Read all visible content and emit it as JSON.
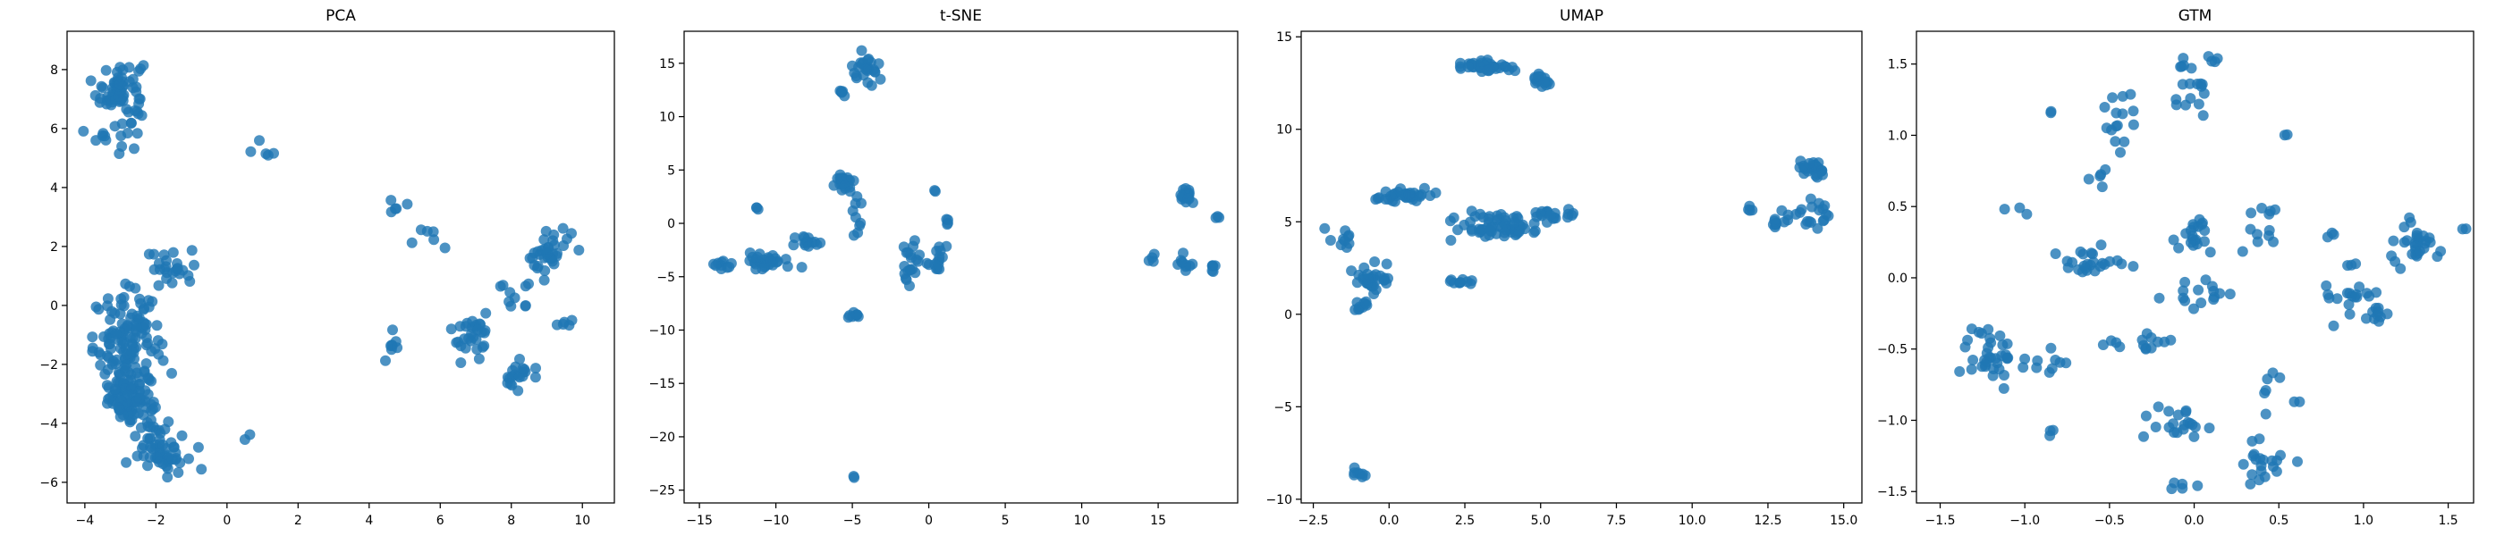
{
  "style": {
    "marker_color": "#1f77b4",
    "marker_alpha": 0.8
  },
  "chart_data": [
    {
      "type": "scatter",
      "title": "PCA",
      "xlim": [
        -4.5,
        10.9
      ],
      "ylim": [
        -6.7,
        9.3
      ],
      "xticks": [
        -4,
        -2,
        0,
        2,
        4,
        6,
        8,
        10
      ],
      "yticks": [
        -6,
        -4,
        -2,
        0,
        2,
        4,
        6,
        8
      ],
      "clusters": [
        {
          "cx": -3.0,
          "cy": 7.3,
          "sx": 0.55,
          "sy": 0.9,
          "n": 70
        },
        {
          "cx": -3.2,
          "cy": 5.8,
          "sx": 0.4,
          "sy": 0.5,
          "n": 12
        },
        {
          "cx": -2.8,
          "cy": -1.5,
          "sx": 0.8,
          "sy": 1.6,
          "n": 150
        },
        {
          "cx": -2.7,
          "cy": -3.3,
          "sx": 0.5,
          "sy": 0.6,
          "n": 60
        },
        {
          "cx": -1.8,
          "cy": -4.8,
          "sx": 0.6,
          "sy": 0.7,
          "n": 60
        },
        {
          "cx": -1.6,
          "cy": 1.3,
          "sx": 0.6,
          "sy": 0.6,
          "n": 25
        },
        {
          "cx": 0.8,
          "cy": 5.2,
          "sx": 0.4,
          "sy": 0.3,
          "n": 5
        },
        {
          "cx": 0.6,
          "cy": -4.5,
          "sx": 0.1,
          "sy": 0.2,
          "n": 2
        },
        {
          "cx": 4.6,
          "cy": -1.6,
          "sx": 0.3,
          "sy": 0.5,
          "n": 8
        },
        {
          "cx": 4.9,
          "cy": 3.2,
          "sx": 0.4,
          "sy": 0.3,
          "n": 5
        },
        {
          "cx": 5.7,
          "cy": 2.1,
          "sx": 0.5,
          "sy": 0.5,
          "n": 6
        },
        {
          "cx": 6.9,
          "cy": -1.0,
          "sx": 0.5,
          "sy": 0.7,
          "n": 30
        },
        {
          "cx": 8.2,
          "cy": -2.4,
          "sx": 0.3,
          "sy": 0.4,
          "n": 20
        },
        {
          "cx": 9.0,
          "cy": 1.8,
          "sx": 0.6,
          "sy": 0.8,
          "n": 35
        },
        {
          "cx": 8.2,
          "cy": 0.5,
          "sx": 0.4,
          "sy": 0.6,
          "n": 10
        },
        {
          "cx": 9.3,
          "cy": -0.6,
          "sx": 0.5,
          "sy": 0.3,
          "n": 5
        }
      ]
    },
    {
      "type": "scatter",
      "title": "t-SNE",
      "xlim": [
        -16.0,
        20.2
      ],
      "ylim": [
        -26.2,
        18.0
      ],
      "xticks": [
        -15,
        -10,
        -5,
        0,
        5,
        10,
        15
      ],
      "yticks": [
        -25,
        -20,
        -15,
        -10,
        -5,
        0,
        5,
        10,
        15
      ],
      "clusters": [
        {
          "cx": -4.2,
          "cy": 14.5,
          "sx": 1.2,
          "sy": 1.5,
          "n": 25
        },
        {
          "cx": -5.6,
          "cy": 12.2,
          "sx": 0.5,
          "sy": 0.3,
          "n": 6
        },
        {
          "cx": -10.5,
          "cy": -3.5,
          "sx": 1.2,
          "sy": 0.6,
          "n": 30
        },
        {
          "cx": -13.5,
          "cy": -3.8,
          "sx": 1.0,
          "sy": 0.3,
          "n": 10
        },
        {
          "cx": -8.0,
          "cy": -1.7,
          "sx": 1.0,
          "sy": 0.6,
          "n": 15
        },
        {
          "cx": -5.5,
          "cy": 3.8,
          "sx": 0.5,
          "sy": 0.6,
          "n": 20
        },
        {
          "cx": -4.8,
          "cy": 0.5,
          "sx": 0.5,
          "sy": 1.5,
          "n": 10
        },
        {
          "cx": -11.2,
          "cy": 1.4,
          "sx": 0.1,
          "sy": 0.2,
          "n": 3
        },
        {
          "cx": -4.8,
          "cy": -8.6,
          "sx": 0.4,
          "sy": 0.4,
          "n": 8
        },
        {
          "cx": -1.2,
          "cy": -4.0,
          "sx": 0.6,
          "sy": 1.5,
          "n": 20
        },
        {
          "cx": 0.5,
          "cy": -3.5,
          "sx": 0.5,
          "sy": 1.5,
          "n": 15
        },
        {
          "cx": 1.2,
          "cy": 0.2,
          "sx": 0.1,
          "sy": 0.4,
          "n": 4
        },
        {
          "cx": 0.4,
          "cy": 3.0,
          "sx": 0.1,
          "sy": 0.1,
          "n": 2
        },
        {
          "cx": -4.9,
          "cy": -23.8,
          "sx": 0.1,
          "sy": 0.1,
          "n": 2
        },
        {
          "cx": 16.8,
          "cy": 2.5,
          "sx": 0.4,
          "sy": 0.6,
          "n": 15
        },
        {
          "cx": 16.8,
          "cy": -3.5,
          "sx": 0.5,
          "sy": 0.8,
          "n": 10
        },
        {
          "cx": 14.6,
          "cy": -3.3,
          "sx": 0.3,
          "sy": 0.7,
          "n": 4
        },
        {
          "cx": 18.6,
          "cy": -4.0,
          "sx": 0.2,
          "sy": 0.9,
          "n": 6
        },
        {
          "cx": 18.8,
          "cy": 0.6,
          "sx": 0.2,
          "sy": 0.3,
          "n": 3
        }
      ]
    },
    {
      "type": "scatter",
      "title": "UMAP",
      "xlim": [
        -2.9,
        15.6
      ],
      "ylim": [
        -10.2,
        15.3
      ],
      "xticks": [
        -2.5,
        0.0,
        2.5,
        5.0,
        7.5,
        10.0,
        12.5,
        15.0
      ],
      "yticks": [
        -10,
        -5,
        0,
        5,
        10,
        15
      ],
      "clusters": [
        {
          "cx": 3.2,
          "cy": 13.4,
          "sx": 0.8,
          "sy": 0.3,
          "n": 40
        },
        {
          "cx": 5.0,
          "cy": 12.6,
          "sx": 0.3,
          "sy": 0.4,
          "n": 15
        },
        {
          "cx": 0.5,
          "cy": 6.4,
          "sx": 0.7,
          "sy": 0.4,
          "n": 35
        },
        {
          "cx": 3.5,
          "cy": 4.8,
          "sx": 1.2,
          "sy": 0.5,
          "n": 60
        },
        {
          "cx": 5.2,
          "cy": 5.3,
          "sx": 0.3,
          "sy": 0.3,
          "n": 15
        },
        {
          "cx": 6.0,
          "cy": 5.3,
          "sx": 0.1,
          "sy": 0.3,
          "n": 5
        },
        {
          "cx": -1.5,
          "cy": 4.2,
          "sx": 0.4,
          "sy": 0.8,
          "n": 10
        },
        {
          "cx": -0.5,
          "cy": 2.0,
          "sx": 0.5,
          "sy": 0.6,
          "n": 30
        },
        {
          "cx": -0.9,
          "cy": 0.5,
          "sx": 0.3,
          "sy": 0.3,
          "n": 10
        },
        {
          "cx": 2.4,
          "cy": 1.7,
          "sx": 0.4,
          "sy": 0.2,
          "n": 10
        },
        {
          "cx": -1.0,
          "cy": -8.6,
          "sx": 0.2,
          "sy": 0.2,
          "n": 8
        },
        {
          "cx": 14.0,
          "cy": 7.9,
          "sx": 0.4,
          "sy": 0.5,
          "n": 30
        },
        {
          "cx": 14.2,
          "cy": 5.4,
          "sx": 0.6,
          "sy": 0.6,
          "n": 20
        },
        {
          "cx": 12.7,
          "cy": 4.9,
          "sx": 0.4,
          "sy": 0.2,
          "n": 10
        },
        {
          "cx": 11.9,
          "cy": 5.7,
          "sx": 0.2,
          "sy": 0.2,
          "n": 4
        }
      ]
    },
    {
      "type": "scatter",
      "title": "GTM",
      "xlim": [
        -1.64,
        1.65
      ],
      "ylim": [
        -1.58,
        1.73
      ],
      "xticks": [
        -1.5,
        -1.0,
        -0.5,
        0.0,
        0.5,
        1.0,
        1.5
      ],
      "yticks": [
        -1.5,
        -1.0,
        -0.5,
        0.0,
        0.5,
        1.0,
        1.5
      ],
      "clusters": [
        {
          "cx": -0.45,
          "cy": 1.1,
          "sx": 0.1,
          "sy": 0.2,
          "n": 15
        },
        {
          "cx": 0.0,
          "cy": 1.25,
          "sx": 0.1,
          "sy": 0.2,
          "n": 15
        },
        {
          "cx": -0.55,
          "cy": 0.7,
          "sx": 0.08,
          "sy": 0.06,
          "n": 5
        },
        {
          "cx": -1.2,
          "cy": -0.55,
          "sx": 0.12,
          "sy": 0.15,
          "n": 35
        },
        {
          "cx": -0.9,
          "cy": -0.6,
          "sx": 0.12,
          "sy": 0.15,
          "n": 10
        },
        {
          "cx": -0.6,
          "cy": 0.1,
          "sx": 0.15,
          "sy": 0.12,
          "n": 25
        },
        {
          "cx": 0.0,
          "cy": 0.3,
          "sx": 0.12,
          "sy": 0.12,
          "n": 20
        },
        {
          "cx": 0.4,
          "cy": 0.35,
          "sx": 0.1,
          "sy": 0.15,
          "n": 12
        },
        {
          "cx": -0.2,
          "cy": -0.45,
          "sx": 0.1,
          "sy": 0.05,
          "n": 8
        },
        {
          "cx": -0.4,
          "cy": -0.47,
          "sx": 0.1,
          "sy": 0.04,
          "n": 6
        },
        {
          "cx": -0.1,
          "cy": -1.0,
          "sx": 0.15,
          "sy": 0.1,
          "n": 20
        },
        {
          "cx": 0.4,
          "cy": -1.3,
          "sx": 0.12,
          "sy": 0.15,
          "n": 20
        },
        {
          "cx": 0.5,
          "cy": -0.75,
          "sx": 0.1,
          "sy": 0.15,
          "n": 8
        },
        {
          "cx": 1.3,
          "cy": 0.25,
          "sx": 0.1,
          "sy": 0.12,
          "n": 30
        },
        {
          "cx": 0.9,
          "cy": -0.1,
          "sx": 0.15,
          "sy": 0.15,
          "n": 20
        },
        {
          "cx": 1.1,
          "cy": -0.25,
          "sx": 0.12,
          "sy": 0.05,
          "n": 10
        },
        {
          "cx": 0.05,
          "cy": -0.1,
          "sx": 0.15,
          "sy": 0.12,
          "n": 15
        },
        {
          "cx": 0.1,
          "cy": 1.55,
          "sx": 0.05,
          "sy": 0.04,
          "n": 4
        },
        {
          "cx": -0.05,
          "cy": 1.5,
          "sx": 0.04,
          "sy": 0.04,
          "n": 3
        },
        {
          "cx": 0.55,
          "cy": 1.0,
          "sx": 0.02,
          "sy": 0.02,
          "n": 2
        },
        {
          "cx": -1.05,
          "cy": 0.5,
          "sx": 0.08,
          "sy": 0.05,
          "n": 3
        },
        {
          "cx": -0.85,
          "cy": 1.17,
          "sx": 0.02,
          "sy": 0.02,
          "n": 2
        },
        {
          "cx": -0.85,
          "cy": -1.08,
          "sx": 0.02,
          "sy": 0.02,
          "n": 3
        },
        {
          "cx": -0.05,
          "cy": -1.45,
          "sx": 0.15,
          "sy": 0.03,
          "n": 5
        },
        {
          "cx": 0.8,
          "cy": 0.3,
          "sx": 0.05,
          "sy": 0.05,
          "n": 3
        },
        {
          "cx": 1.6,
          "cy": 0.35,
          "sx": 0.02,
          "sy": 0.02,
          "n": 2
        }
      ]
    }
  ]
}
